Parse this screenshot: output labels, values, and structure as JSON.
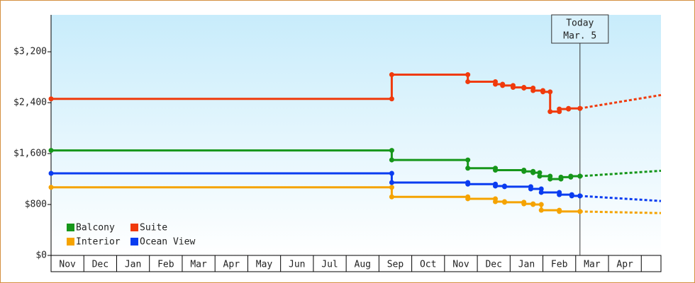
{
  "chart_data": {
    "type": "step",
    "xlim": [
      0,
      18.6
    ],
    "ylim": [
      0,
      3780
    ],
    "xticks": [
      {
        "value": 0,
        "label": "Nov"
      },
      {
        "value": 1,
        "label": "Dec"
      },
      {
        "value": 2,
        "label": "Jan"
      },
      {
        "value": 3,
        "label": "Feb"
      },
      {
        "value": 4,
        "label": "Mar"
      },
      {
        "value": 5,
        "label": "Apr"
      },
      {
        "value": 6,
        "label": "May"
      },
      {
        "value": 7,
        "label": "Jun"
      },
      {
        "value": 8,
        "label": "Jul"
      },
      {
        "value": 9,
        "label": "Aug"
      },
      {
        "value": 10,
        "label": "Sep"
      },
      {
        "value": 11,
        "label": "Oct"
      },
      {
        "value": 12,
        "label": "Nov"
      },
      {
        "value": 13,
        "label": "Dec"
      },
      {
        "value": 14,
        "label": "Jan"
      },
      {
        "value": 15,
        "label": "Feb"
      },
      {
        "value": 16,
        "label": "Mar"
      },
      {
        "value": 17,
        "label": "Apr"
      }
    ],
    "yticks": [
      {
        "value": 0,
        "label": "$0"
      },
      {
        "value": 800,
        "label": "$800"
      },
      {
        "value": 1600,
        "label": "$1,600"
      },
      {
        "value": 2400,
        "label": "$2,400"
      },
      {
        "value": 3200,
        "label": "$3,200"
      }
    ],
    "today": {
      "x": 16.13,
      "title": "Today",
      "date": "Mar. 5"
    },
    "legend": "bottom-left",
    "series": [
      {
        "name": "Balcony",
        "color": "#16961a",
        "x": [
          0,
          10.39,
          12.71,
          13.55,
          14.42,
          14.7,
          14.9,
          15.22,
          15.55,
          15.85,
          16.13
        ],
        "values": [
          1650,
          1500,
          1370,
          1340,
          1320,
          1300,
          1245,
          1200,
          1230,
          1245,
          1245
        ],
        "forecast": {
          "x": [
            16.13,
            18.6
          ],
          "values": [
            1245,
            1330
          ]
        }
      },
      {
        "name": "Suite",
        "color": "#f03a0c",
        "x": [
          0,
          10.39,
          12.71,
          13.55,
          13.77,
          14.09,
          14.42,
          14.7,
          15.0,
          15.22,
          15.5,
          15.78,
          16.13
        ],
        "values": [
          2460,
          2840,
          2730,
          2690,
          2670,
          2640,
          2630,
          2590,
          2570,
          2260,
          2300,
          2310,
          2310
        ],
        "forecast": {
          "x": [
            16.13,
            18.6
          ],
          "values": [
            2310,
            2520
          ]
        }
      },
      {
        "name": "Interior",
        "color": "#f5a300",
        "x": [
          0,
          10.39,
          12.71,
          13.55,
          13.83,
          14.42,
          14.7,
          14.95,
          15.5,
          16.13
        ],
        "values": [
          1070,
          920,
          890,
          845,
          835,
          810,
          800,
          710,
          690,
          690
        ],
        "forecast": {
          "x": [
            16.13,
            18.6
          ],
          "values": [
            690,
            665
          ]
        }
      },
      {
        "name": "Ocean View",
        "color": "#0a3cf0",
        "x": [
          0,
          10.39,
          12.71,
          13.55,
          13.83,
          14.63,
          14.95,
          15.5,
          15.88,
          16.13
        ],
        "values": [
          1290,
          1145,
          1120,
          1090,
          1080,
          1045,
          990,
          955,
          935,
          935
        ],
        "forecast": {
          "x": [
            16.13,
            18.6
          ],
          "values": [
            935,
            855
          ]
        }
      }
    ]
  }
}
